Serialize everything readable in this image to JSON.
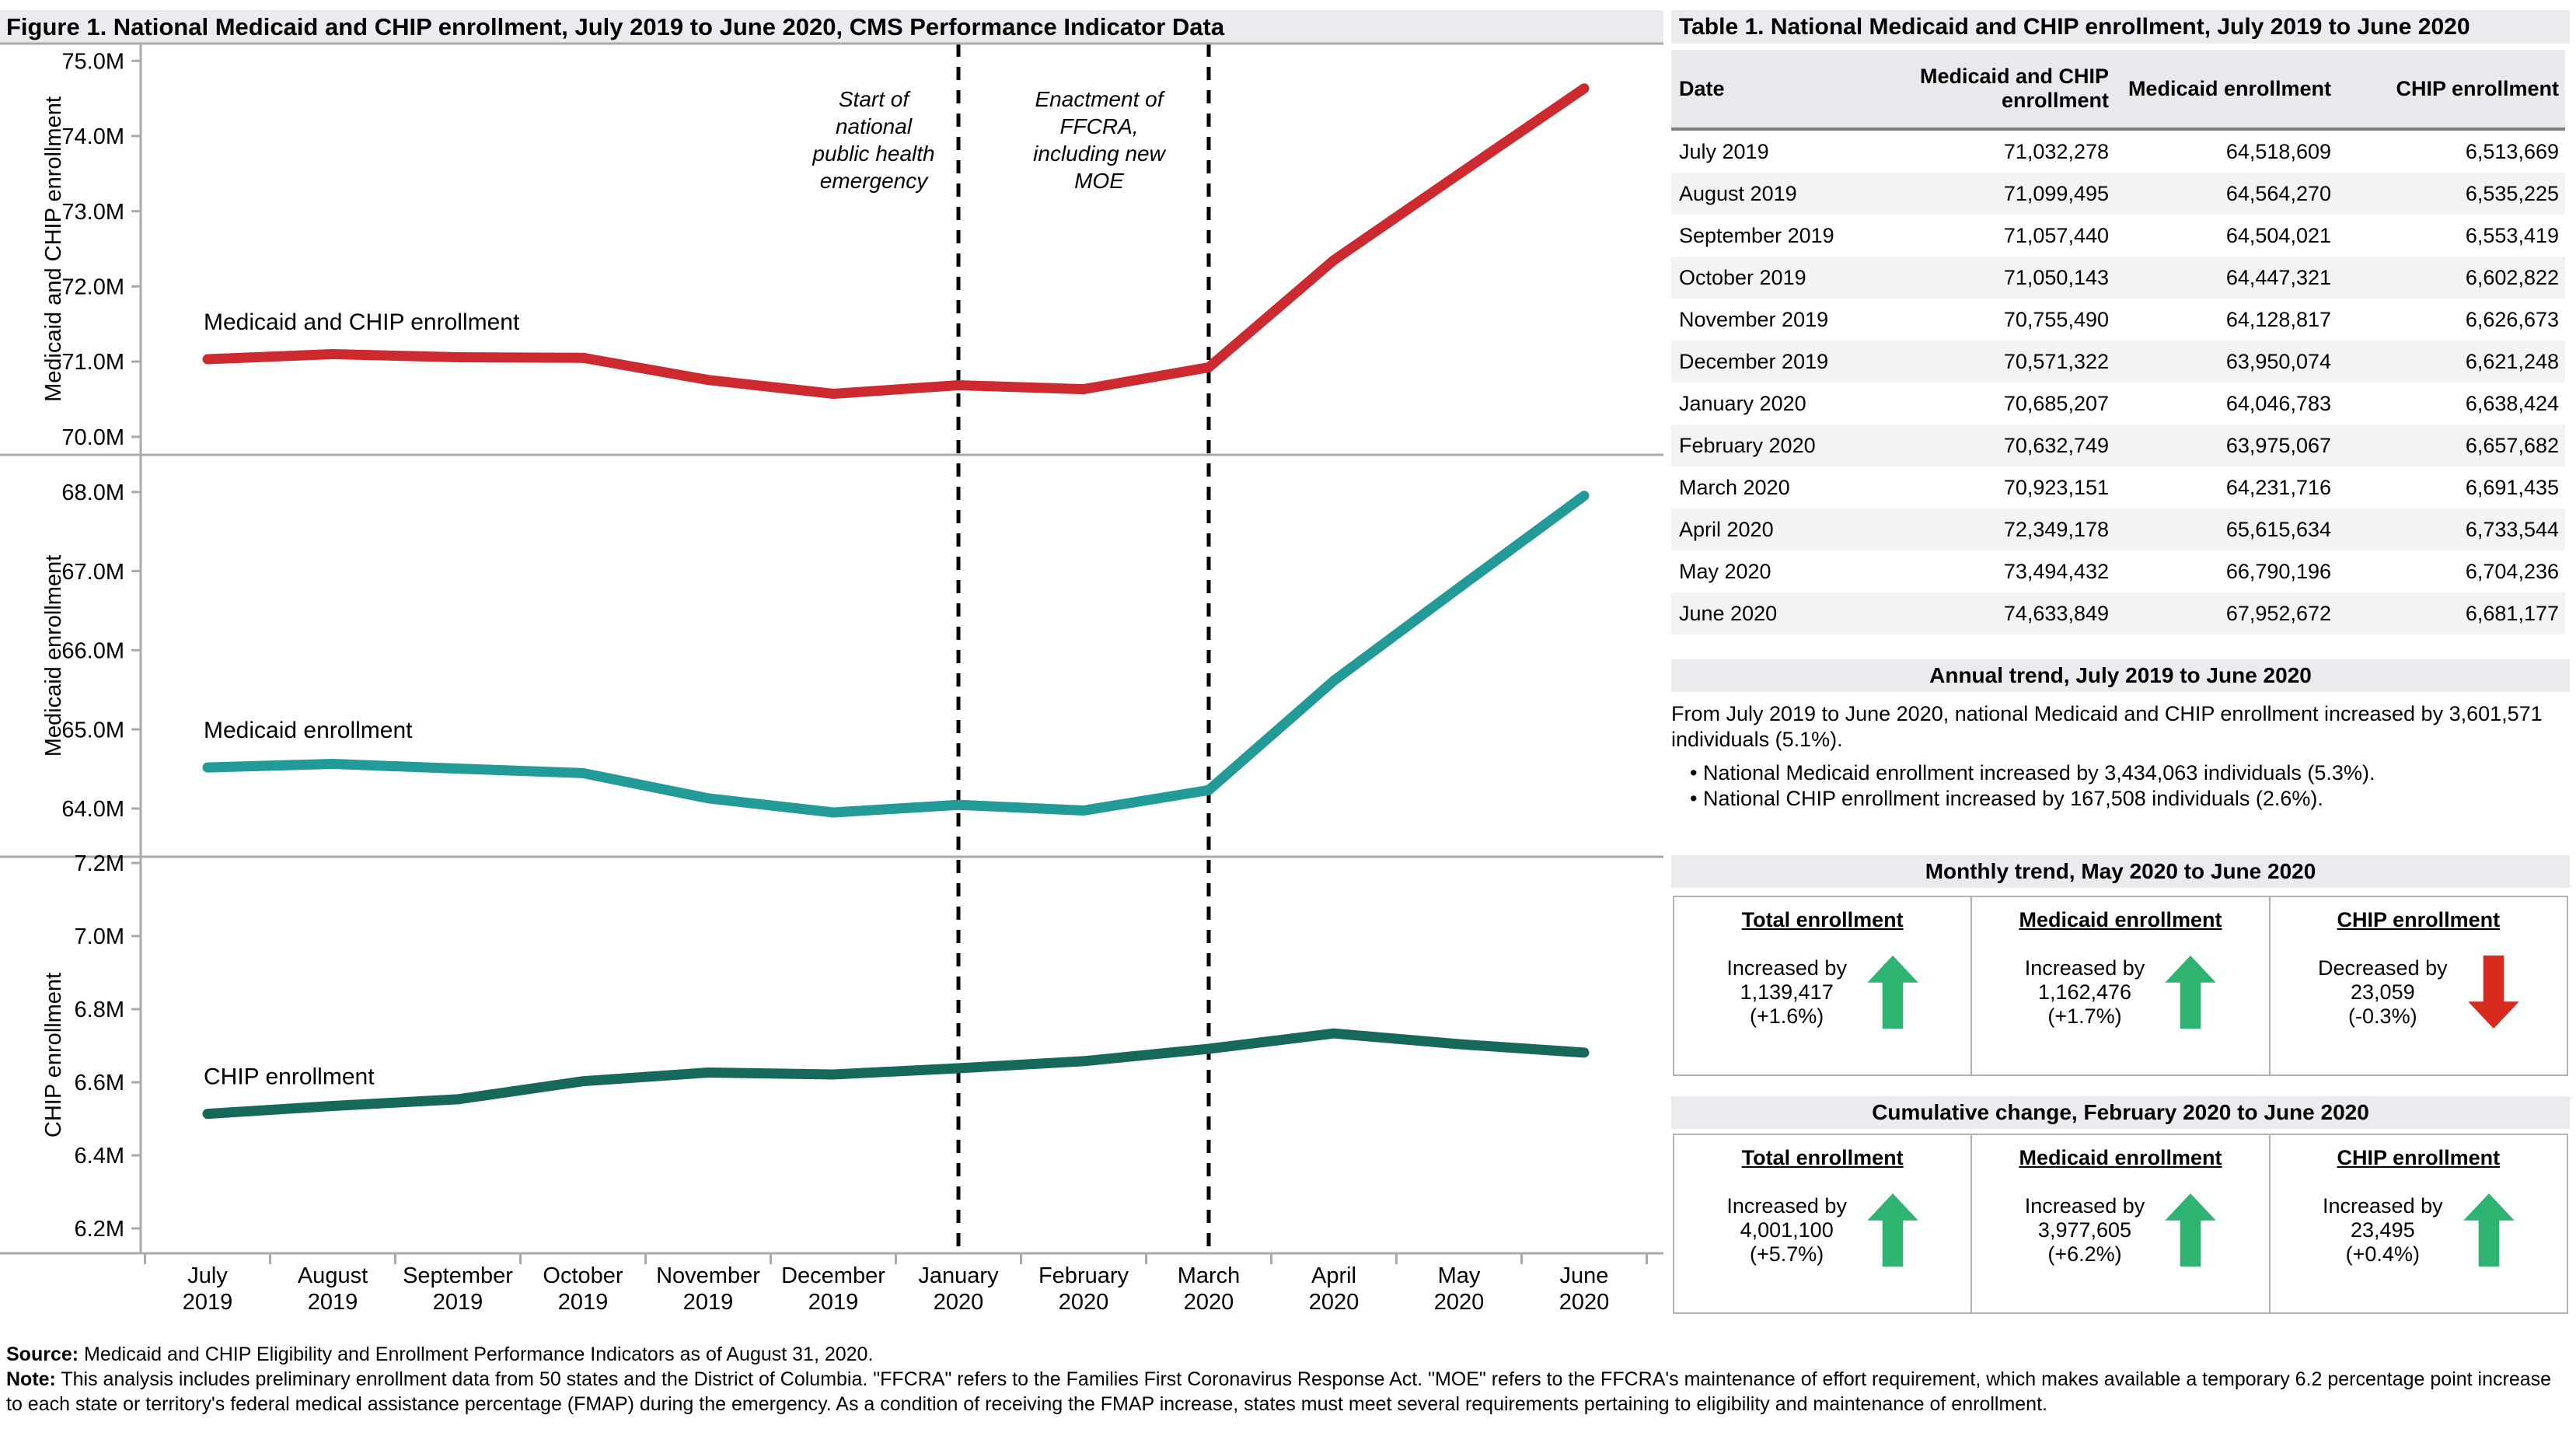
{
  "figure": {
    "title": "Figure 1. National Medicaid and CHIP enrollment, July 2019 to June 2020, CMS Performance Indicator Data",
    "source_label": "Source:",
    "source_text": " Medicaid and CHIP Eligibility and Enrollment Performance Indicators as of August 31, 2020.",
    "note_label": "Note:",
    "note_text": " This analysis includes preliminary enrollment data from 50 states and the District of Columbia. \"FFCRA\" refers to the Families First Coronavirus Response Act. \"MOE\" refers to the FFCRA's maintenance of effort requirement, which makes available a temporary 6.2 percentage point increase to each state or territory's federal medical assistance percentage (FMAP) during the emergency. As a condition of receiving the FMAP increase, states must meet several requirements pertaining to eligibility and maintenance of enrollment."
  },
  "colors": {
    "medicaid_chip_line": "#cc2a2e",
    "medicaid_line": "#219a98",
    "chip_line": "#16695a",
    "up_arrow": "#2eb370",
    "down_arrow": "#d82a1f",
    "axis_gray": "#aaaaaa"
  },
  "chart_data": {
    "type": "line",
    "categories": [
      "July 2019",
      "August 2019",
      "September 2019",
      "October 2019",
      "November 2019",
      "December 2019",
      "January 2020",
      "February 2020",
      "March 2020",
      "April 2020",
      "May 2020",
      "June 2020"
    ],
    "grid": false,
    "legend": "inline-labels",
    "panels": [
      {
        "ylabel": "Medicaid and CHIP enrollment",
        "series": "Medicaid and CHIP enrollment",
        "color": "#cc2a2e",
        "values": [
          71032278,
          71099495,
          71057440,
          71050143,
          70755490,
          70571322,
          70685207,
          70632749,
          70923151,
          72349178,
          73494432,
          74633849
        ],
        "yticks_millions": [
          75.0,
          74.0,
          73.0,
          72.0,
          71.0,
          70.0
        ],
        "ylim_millions": [
          69.76,
          75.23
        ]
      },
      {
        "ylabel": "Medicaid enrollment",
        "series": "Medicaid enrollment",
        "color": "#219a98",
        "values": [
          64518609,
          64564270,
          64504021,
          64447321,
          64128817,
          63950074,
          64046783,
          63975067,
          64231716,
          65615634,
          66790196,
          67952672
        ],
        "yticks_millions": [
          68.0,
          67.0,
          66.0,
          65.0,
          64.0
        ],
        "ylim_millions": [
          63.39,
          68.47
        ]
      },
      {
        "ylabel": "CHIP enrollment",
        "series": "CHIP enrollment",
        "color": "#16695a",
        "values": [
          6513669,
          6535225,
          6553419,
          6602822,
          6626673,
          6621248,
          6638424,
          6657682,
          6691435,
          6733544,
          6704236,
          6681177
        ],
        "yticks_millions": [
          7.2,
          7.0,
          6.8,
          6.6,
          6.4,
          6.2
        ],
        "ylim_millions": [
          6.132,
          7.217
        ]
      }
    ],
    "annotations": [
      {
        "lines": [
          "Start of",
          "national",
          "public health",
          "emergency"
        ],
        "month": "January 2020",
        "month_index": 6
      },
      {
        "lines": [
          "Enactment of",
          "FFCRA,",
          "including new",
          "MOE"
        ],
        "month": "March 2020",
        "month_index": 8
      }
    ]
  },
  "table": {
    "title": "Table 1. National Medicaid and CHIP enrollment, July 2019 to June 2020",
    "headers": [
      "Date",
      "Medicaid and CHIP enrollment",
      "Medicaid enrollment",
      "CHIP enrollment"
    ],
    "rows": [
      [
        "July 2019",
        "71,032,278",
        "64,518,609",
        "6,513,669"
      ],
      [
        "August 2019",
        "71,099,495",
        "64,564,270",
        "6,535,225"
      ],
      [
        "September 2019",
        "71,057,440",
        "64,504,021",
        "6,553,419"
      ],
      [
        "October 2019",
        "71,050,143",
        "64,447,321",
        "6,602,822"
      ],
      [
        "November 2019",
        "70,755,490",
        "64,128,817",
        "6,626,673"
      ],
      [
        "December 2019",
        "70,571,322",
        "63,950,074",
        "6,621,248"
      ],
      [
        "January 2020",
        "70,685,207",
        "64,046,783",
        "6,638,424"
      ],
      [
        "February 2020",
        "70,632,749",
        "63,975,067",
        "6,657,682"
      ],
      [
        "March 2020",
        "70,923,151",
        "64,231,716",
        "6,691,435"
      ],
      [
        "April 2020",
        "72,349,178",
        "65,615,634",
        "6,733,544"
      ],
      [
        "May 2020",
        "73,494,432",
        "66,790,196",
        "6,704,236"
      ],
      [
        "June 2020",
        "74,633,849",
        "67,952,672",
        "6,681,177"
      ]
    ]
  },
  "annual_trend": {
    "title": "Annual trend, July 2019 to June 2020",
    "paragraph": "From July 2019 to June 2020, national Medicaid and CHIP enrollment increased by 3,601,571 individuals (5.1%).",
    "bullets": [
      "National Medicaid enrollment increased by 3,434,063 individuals (5.3%).",
      "National CHIP enrollment increased by 167,508 individuals (2.6%)."
    ]
  },
  "monthly_trend": {
    "title": "Monthly trend, May 2020 to June 2020",
    "cards": [
      {
        "header": "Total enrollment",
        "line1": "Increased by",
        "line2": "1,139,417",
        "line3": "(+1.6%)",
        "direction": "up"
      },
      {
        "header": "Medicaid enrollment",
        "line1": "Increased by",
        "line2": "1,162,476",
        "line3": "(+1.7%)",
        "direction": "up"
      },
      {
        "header": "CHIP enrollment",
        "line1": "Decreased by",
        "line2": "23,059",
        "line3": "(-0.3%)",
        "direction": "down"
      }
    ]
  },
  "cumulative_change": {
    "title": "Cumulative change, February 2020 to June 2020",
    "cards": [
      {
        "header": "Total enrollment",
        "line1": "Increased by",
        "line2": "4,001,100",
        "line3": "(+5.7%)",
        "direction": "up"
      },
      {
        "header": "Medicaid enrollment",
        "line1": "Increased by",
        "line2": "3,977,605",
        "line3": "(+6.2%)",
        "direction": "up"
      },
      {
        "header": "CHIP enrollment",
        "line1": "Increased by",
        "line2": "23,495",
        "line3": "(+0.4%)",
        "direction": "up"
      }
    ]
  }
}
